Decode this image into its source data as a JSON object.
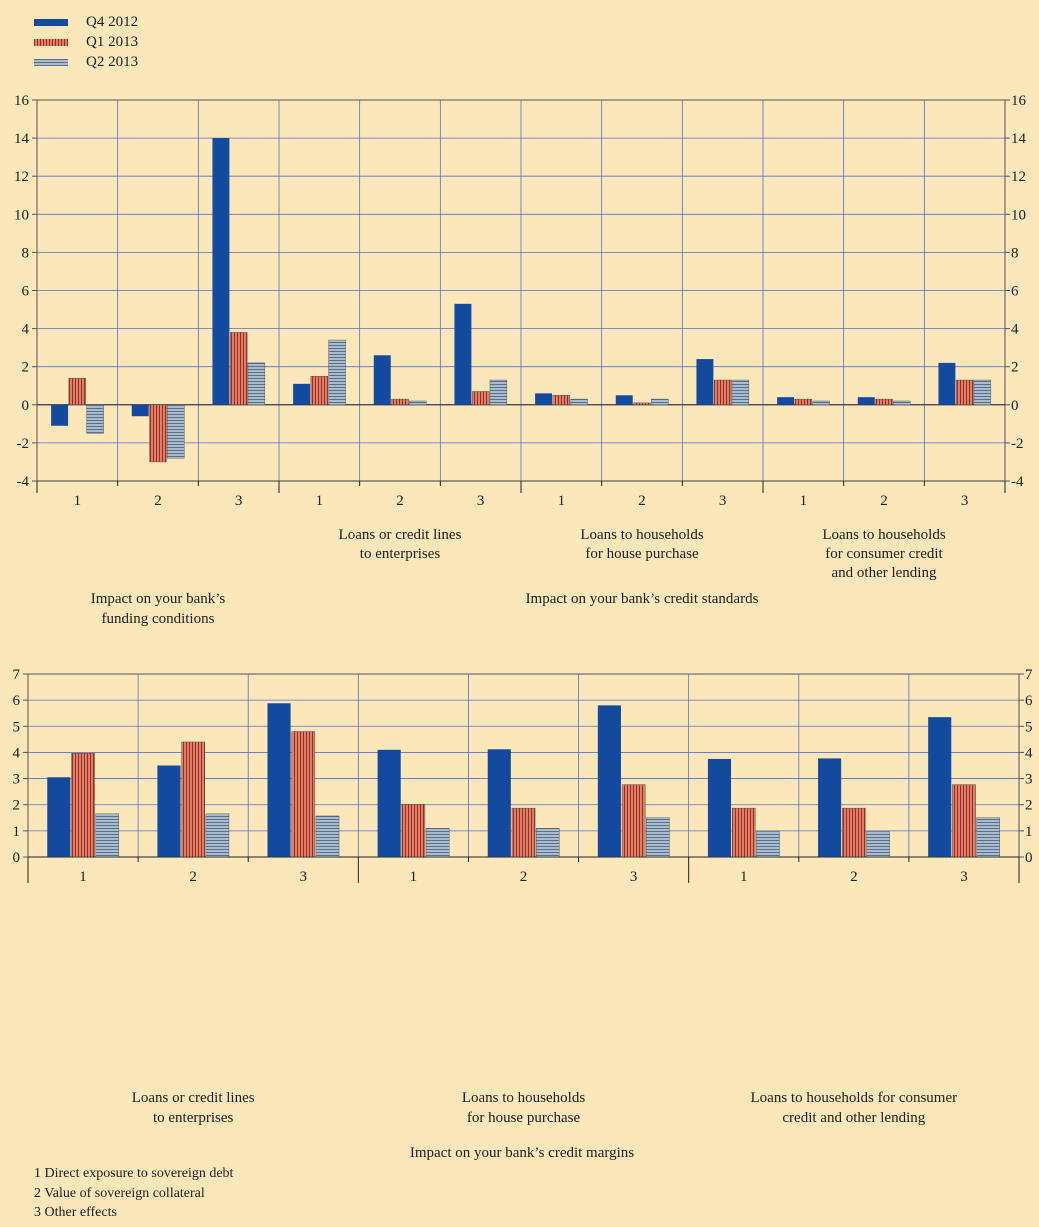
{
  "legend": [
    {
      "name": "Q4 2012",
      "color": "#144a9e",
      "pattern": "solid"
    },
    {
      "name": "Q1 2013",
      "color": "#d9806a",
      "pattern": "vstripe"
    },
    {
      "name": "Q2 2013",
      "color": "#a9bccd",
      "pattern": "hstripe"
    }
  ],
  "footnotes": [
    "1 Direct exposure to sovereign debt",
    "2 Value of sovereign collateral",
    "3 Other effects"
  ],
  "chart_data": [
    {
      "type": "bar",
      "ylim": [
        -4,
        16
      ],
      "yticks": [
        -4,
        -2,
        0,
        2,
        4,
        6,
        8,
        10,
        12,
        14,
        16
      ],
      "grid": true,
      "categories": [
        "1",
        "2",
        "3",
        "1",
        "2",
        "3",
        "1",
        "2",
        "3",
        "1",
        "2",
        "3"
      ],
      "groups": [
        {
          "label": "Impact on your bank’s funding conditions",
          "lines": [
            "Impact on your bank’s",
            "funding conditions"
          ],
          "start": 0,
          "end": 2
        },
        {
          "label": "Impact on your bank’s credit standards",
          "lines": [
            "Impact on your bank’s credit standards"
          ],
          "start": 3,
          "end": 11
        }
      ],
      "subgroups": [
        {
          "lines": [
            "Loans or credit lines",
            "to enterprises"
          ],
          "start": 3,
          "end": 5
        },
        {
          "lines": [
            "Loans to households",
            "for house purchase"
          ],
          "start": 6,
          "end": 8
        },
        {
          "lines": [
            "Loans to households",
            "for consumer credit",
            "and other lending"
          ],
          "start": 9,
          "end": 11
        }
      ],
      "series": [
        {
          "name": "Q4 2012",
          "values": [
            -1.1,
            -0.6,
            14.0,
            1.1,
            2.6,
            5.3,
            0.6,
            0.5,
            2.4,
            0.4,
            0.4,
            2.2
          ]
        },
        {
          "name": "Q1 2013",
          "values": [
            1.4,
            -3.0,
            3.8,
            1.5,
            0.3,
            0.7,
            0.5,
            0.1,
            1.3,
            0.3,
            0.3,
            1.3
          ]
        },
        {
          "name": "Q2 2013",
          "values": [
            -1.5,
            -2.8,
            2.2,
            3.4,
            0.2,
            1.3,
            0.3,
            0.3,
            1.3,
            0.2,
            0.2,
            1.3
          ]
        }
      ]
    },
    {
      "type": "bar",
      "ylim": [
        0,
        7
      ],
      "yticks": [
        0,
        1,
        2,
        3,
        4,
        5,
        6,
        7
      ],
      "grid": true,
      "categories": [
        "1",
        "2",
        "3",
        "1",
        "2",
        "3",
        "1",
        "2",
        "3"
      ],
      "groups": [
        {
          "lines": [
            "Loans or credit lines",
            "to enterprises"
          ],
          "start": 0,
          "end": 2
        },
        {
          "lines": [
            "Loans to households",
            "for house purchase"
          ],
          "start": 3,
          "end": 5
        },
        {
          "lines": [
            "Loans to households for consumer",
            "credit and other lending"
          ],
          "start": 6,
          "end": 8
        }
      ],
      "xlabel": "Impact on your bank’s credit margins",
      "series": [
        {
          "name": "Q4 2012",
          "values": [
            3.05,
            3.5,
            5.88,
            4.1,
            4.12,
            5.8,
            3.75,
            3.77,
            5.35
          ]
        },
        {
          "name": "Q1 2013",
          "values": [
            3.97,
            4.4,
            4.8,
            2.02,
            1.87,
            2.77,
            1.87,
            1.87,
            2.77
          ]
        },
        {
          "name": "Q2 2013",
          "values": [
            1.65,
            1.65,
            1.57,
            1.1,
            1.1,
            1.5,
            0.97,
            0.97,
            1.5
          ]
        }
      ]
    }
  ]
}
